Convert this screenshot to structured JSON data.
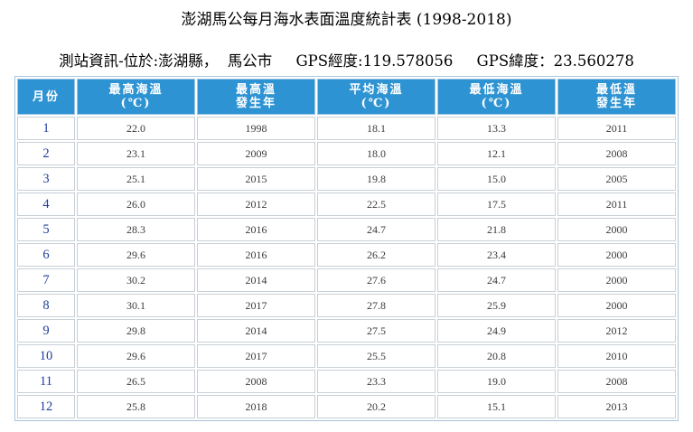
{
  "title": "澎湖馬公每月海水表面溫度統計表 (1998-2018)",
  "station_info": "測站資訊-位於:澎湖縣，  馬公市     GPS經度:119.578056     GPS緯度：23.560278",
  "table": {
    "headers": [
      {
        "line1": "月份",
        "line2": ""
      },
      {
        "line1": "最高海溫",
        "line2": "(℃)"
      },
      {
        "line1": "最高溫",
        "line2": "發生年"
      },
      {
        "line1": "平均海溫",
        "line2": "(℃)"
      },
      {
        "line1": "最低海溫",
        "line2": "(℃)"
      },
      {
        "line1": "最低溫",
        "line2": "發生年"
      }
    ],
    "rows": [
      [
        "1",
        "22.0",
        "1998",
        "18.1",
        "13.3",
        "2011"
      ],
      [
        "2",
        "23.1",
        "2009",
        "18.0",
        "12.1",
        "2008"
      ],
      [
        "3",
        "25.1",
        "2015",
        "19.8",
        "15.0",
        "2005"
      ],
      [
        "4",
        "26.0",
        "2012",
        "22.5",
        "17.5",
        "2011"
      ],
      [
        "5",
        "28.3",
        "2016",
        "24.7",
        "21.8",
        "2000"
      ],
      [
        "6",
        "29.6",
        "2016",
        "26.2",
        "23.4",
        "2000"
      ],
      [
        "7",
        "30.2",
        "2014",
        "27.6",
        "24.7",
        "2000"
      ],
      [
        "8",
        "30.1",
        "2017",
        "27.8",
        "25.9",
        "2000"
      ],
      [
        "9",
        "29.8",
        "2014",
        "27.5",
        "24.9",
        "2012"
      ],
      [
        "10",
        "29.6",
        "2017",
        "25.5",
        "20.8",
        "2010"
      ],
      [
        "11",
        "26.5",
        "2008",
        "23.3",
        "19.0",
        "2008"
      ],
      [
        "12",
        "25.8",
        "2018",
        "20.2",
        "15.1",
        "2013"
      ]
    ]
  },
  "colors": {
    "header_bg": "#2e93d2",
    "header_text": "#ffffff",
    "month_text": "#1f3c9e",
    "cell_border": "#c7cfd6"
  }
}
